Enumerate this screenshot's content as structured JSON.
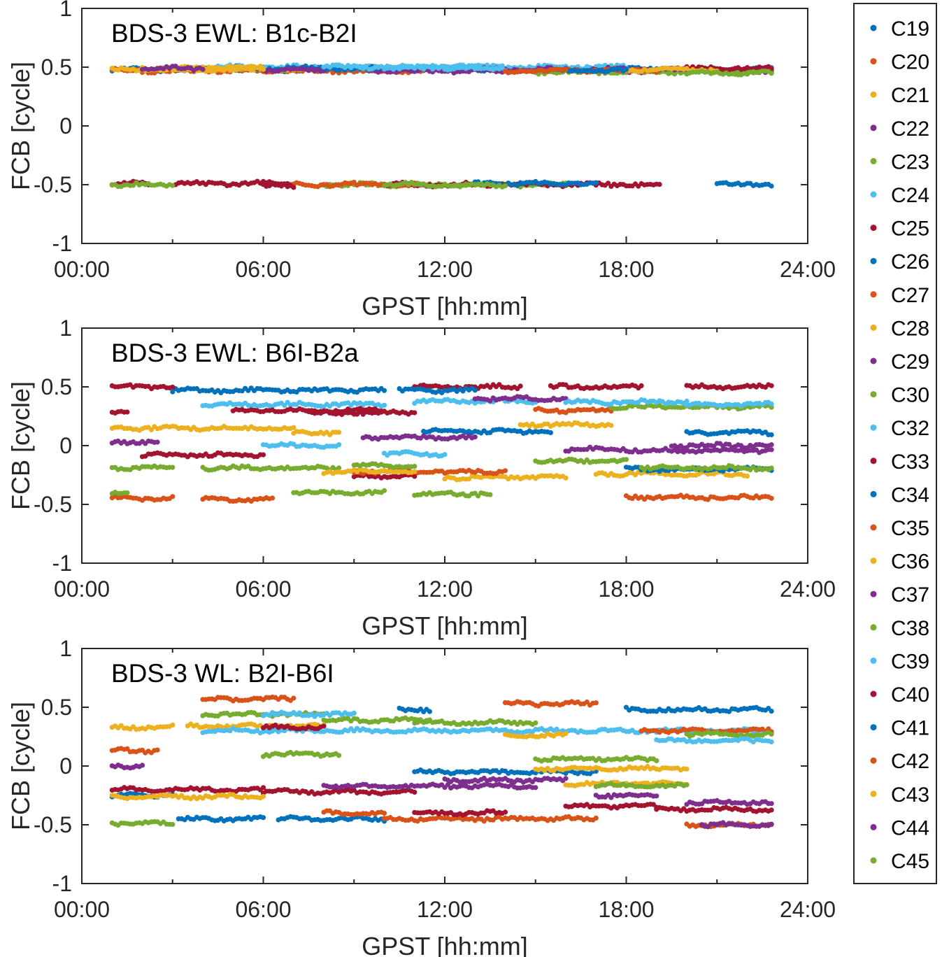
{
  "chart_data": [
    {
      "type": "scatter",
      "title": "BDS-3 EWL: B1c-B2I",
      "xlabel": "GPST [hh:mm]",
      "ylabel": "FCB [cycle]",
      "xlim": [
        0,
        24
      ],
      "ylim": [
        -1,
        1
      ],
      "xticks": [
        "00:00",
        "06:00",
        "12:00",
        "18:00",
        "24:00"
      ],
      "yticks": [
        "-1",
        "-0.5",
        "0",
        "0.5",
        "1"
      ],
      "series": [
        {
          "name": "C19",
          "segments": [
            [
              1,
              22.8,
              0.48
            ],
            [
              21,
              22.8,
              -0.5
            ]
          ]
        },
        {
          "name": "C20",
          "segments": [
            [
              1,
              12,
              0.47
            ]
          ]
        },
        {
          "name": "C21",
          "segments": [
            [
              1,
              7.5,
              0.48
            ]
          ]
        },
        {
          "name": "C22",
          "segments": [
            [
              9.5,
              22.8,
              0.47
            ]
          ]
        },
        {
          "name": "C23",
          "segments": [
            [
              8,
              16,
              -0.5
            ],
            [
              15,
              22.8,
              0.46
            ]
          ]
        },
        {
          "name": "C24",
          "segments": [
            [
              4,
              18,
              0.5
            ]
          ]
        },
        {
          "name": "C25",
          "segments": [
            [
              1,
              2.2,
              -0.49
            ],
            [
              3.1,
              6.9,
              -0.49
            ],
            [
              10,
              19.1,
              -0.5
            ]
          ]
        },
        {
          "name": "C26",
          "segments": [
            [
              5,
              10,
              0.49
            ]
          ]
        },
        {
          "name": "C27",
          "segments": [
            [
              7,
              11,
              -0.5
            ]
          ]
        },
        {
          "name": "C28",
          "segments": [
            [
              2,
              6,
              0.49
            ]
          ]
        },
        {
          "name": "C29",
          "segments": [
            [
              12,
              20,
              0.48
            ]
          ]
        },
        {
          "name": "C30",
          "segments": [
            [
              1,
              3,
              -0.5
            ]
          ]
        },
        {
          "name": "C32",
          "segments": [
            [
              12,
              14,
              0.49
            ]
          ]
        },
        {
          "name": "C33",
          "segments": [
            [
              20,
              22.8,
              0.49
            ]
          ]
        },
        {
          "name": "C34",
          "segments": [
            [
              13,
              17,
              -0.49
            ]
          ]
        },
        {
          "name": "C35",
          "segments": [
            [
              16,
              19,
              0.47
            ]
          ]
        },
        {
          "name": "C36",
          "segments": [
            [
              18,
              21,
              0.48
            ]
          ]
        },
        {
          "name": "C37",
          "segments": [
            [
              6,
              8,
              0.48
            ]
          ]
        },
        {
          "name": "C38",
          "segments": [
            [
              10,
              14,
              -0.5
            ]
          ]
        },
        {
          "name": "C39",
          "segments": [
            [
              8,
              13,
              0.5
            ]
          ]
        },
        {
          "name": "C40",
          "segments": [
            [
              6,
              7,
              -0.51
            ]
          ]
        },
        {
          "name": "C41",
          "segments": [
            [
              16,
              18,
              0.47
            ]
          ]
        },
        {
          "name": "C42",
          "segments": [
            [
              14,
              16,
              0.47
            ]
          ]
        },
        {
          "name": "C43",
          "segments": [
            [
              4,
              6,
              0.49
            ]
          ]
        },
        {
          "name": "C44",
          "segments": [
            [
              2,
              4,
              0.49
            ]
          ]
        },
        {
          "name": "C45",
          "segments": [
            [
              20,
              22.8,
              0.45
            ]
          ]
        }
      ]
    },
    {
      "type": "scatter",
      "title": "BDS-3 EWL: B6I-B2a",
      "xlabel": "GPST [hh:mm]",
      "ylabel": "FCB [cycle]",
      "xlim": [
        0,
        24
      ],
      "ylim": [
        -1,
        1
      ],
      "xticks": [
        "00:00",
        "06:00",
        "12:00",
        "18:00",
        "24:00"
      ],
      "yticks": [
        "-1",
        "-0.5",
        "0",
        "0.5",
        "1"
      ],
      "series": [
        {
          "name": "C19",
          "segments": [
            [
              3,
              10,
              0.47
            ],
            [
              11.3,
              15.5,
              0.12
            ]
          ]
        },
        {
          "name": "C20",
          "segments": [
            [
              1,
              3,
              -0.45
            ],
            [
              4,
              6.3,
              -0.46
            ]
          ]
        },
        {
          "name": "C21",
          "segments": [
            [
              1,
              7,
              0.15
            ],
            [
              7,
              8.5,
              0.11
            ]
          ]
        },
        {
          "name": "C22",
          "segments": [
            [
              1,
              2.5,
              0.03
            ],
            [
              9.3,
              13,
              0.07
            ]
          ]
        },
        {
          "name": "C23",
          "segments": [
            [
              1,
              3,
              -0.19
            ],
            [
              4,
              8.5,
              -0.19
            ]
          ]
        },
        {
          "name": "C24",
          "segments": [
            [
              4,
              10,
              0.35
            ],
            [
              11,
              15,
              0.38
            ]
          ]
        },
        {
          "name": "C25",
          "segments": [
            [
              1,
              1.5,
              0.28
            ],
            [
              2,
              6,
              -0.08
            ],
            [
              11,
              14.5,
              0.5
            ]
          ]
        },
        {
          "name": "C26",
          "segments": [
            [
              10.5,
              13,
              0.47
            ]
          ]
        },
        {
          "name": "C27",
          "segments": [
            [
              15,
              17.5,
              0.3
            ]
          ]
        },
        {
          "name": "C28",
          "segments": [
            [
              14.5,
              17.5,
              0.18
            ],
            [
              17,
              22,
              -0.24
            ]
          ]
        },
        {
          "name": "C29",
          "segments": [
            [
              13,
              16,
              0.4
            ],
            [
              19.5,
              22.8,
              0.0
            ]
          ]
        },
        {
          "name": "C30",
          "segments": [
            [
              15,
              18,
              -0.13
            ],
            [
              17.5,
              22.8,
              0.33
            ]
          ]
        },
        {
          "name": "C32",
          "segments": [
            [
              6,
              8.5,
              0.0
            ],
            [
              10,
              12,
              -0.07
            ]
          ]
        },
        {
          "name": "C33",
          "segments": [
            [
              1,
              3,
              0.5
            ],
            [
              7.5,
              11,
              0.28
            ],
            [
              15.5,
              18.5,
              0.5
            ],
            [
              20,
              22.8,
              0.5
            ]
          ]
        },
        {
          "name": "C34",
          "segments": [
            [
              18,
              22.8,
              -0.2
            ]
          ]
        },
        {
          "name": "C35",
          "segments": [
            [
              18,
              22.8,
              -0.44
            ]
          ]
        },
        {
          "name": "C36",
          "segments": [
            [
              12,
              16,
              -0.27
            ]
          ]
        },
        {
          "name": "C37",
          "segments": [
            [
              18,
              22.8,
              -0.04
            ]
          ]
        },
        {
          "name": "C38",
          "segments": [
            [
              7,
              10,
              -0.4
            ],
            [
              11,
              13.5,
              -0.41
            ],
            [
              18.5,
              22.8,
              -0.19
            ]
          ]
        },
        {
          "name": "C39",
          "segments": [
            [
              16,
              20,
              0.37
            ],
            [
              20,
              22.8,
              0.35
            ]
          ]
        },
        {
          "name": "C40",
          "segments": [
            [
              5,
              10,
              0.3
            ],
            [
              9,
              11,
              -0.26
            ]
          ]
        },
        {
          "name": "C41",
          "segments": [
            [
              20,
              22.8,
              0.11
            ]
          ]
        },
        {
          "name": "C42",
          "segments": [
            [
              9,
              14,
              -0.22
            ]
          ]
        },
        {
          "name": "C43",
          "segments": [
            [
              8,
              11,
              -0.22
            ]
          ]
        },
        {
          "name": "C44",
          "segments": [
            [
              16,
              18,
              -0.03
            ]
          ]
        },
        {
          "name": "C45",
          "segments": [
            [
              9,
              11,
              -0.17
            ],
            [
              1,
              1.5,
              -0.4
            ]
          ]
        }
      ]
    },
    {
      "type": "scatter",
      "title": "BDS-3 WL: B2I-B6I",
      "xlabel": "GPST [hh:mm]",
      "ylabel": "FCB [cycle]",
      "xlim": [
        0,
        24
      ],
      "ylim": [
        -1,
        1
      ],
      "xticks": [
        "00:00",
        "06:00",
        "12:00",
        "18:00",
        "24:00"
      ],
      "yticks": [
        "-1",
        "-0.5",
        "0",
        "0.5",
        "1"
      ],
      "series": [
        {
          "name": "C19",
          "segments": [
            [
              1,
              3,
              -0.25
            ],
            [
              3.2,
              6,
              -0.45
            ],
            [
              6.5,
              10,
              -0.45
            ]
          ]
        },
        {
          "name": "C20",
          "segments": [
            [
              1,
              2.5,
              0.13
            ],
            [
              4,
              7,
              0.57
            ],
            [
              14,
              17,
              0.53
            ]
          ]
        },
        {
          "name": "C21",
          "segments": [
            [
              1,
              3,
              0.33
            ],
            [
              3.5,
              8,
              0.34
            ]
          ]
        },
        {
          "name": "C22",
          "segments": [
            [
              1,
              2,
              0.0
            ],
            [
              12,
              16,
              -0.12
            ]
          ]
        },
        {
          "name": "C23",
          "segments": [
            [
              1,
              3,
              -0.49
            ],
            [
              4,
              8,
              0.44
            ]
          ]
        },
        {
          "name": "C24",
          "segments": [
            [
              4,
              22.8,
              0.3
            ]
          ]
        },
        {
          "name": "C25",
          "segments": [
            [
              1,
              6,
              -0.2
            ],
            [
              6,
              11,
              -0.22
            ]
          ]
        },
        {
          "name": "C26",
          "segments": [
            [
              11,
              17,
              -0.05
            ]
          ]
        },
        {
          "name": "C27",
          "segments": [
            [
              8,
              10,
              -0.4
            ],
            [
              10,
              17,
              -0.45
            ]
          ]
        },
        {
          "name": "C28",
          "segments": [
            [
              1,
              6,
              -0.26
            ],
            [
              14,
              16,
              0.26
            ]
          ]
        },
        {
          "name": "C29",
          "segments": [
            [
              8,
              15,
              -0.17
            ],
            [
              17,
              19,
              -0.25
            ]
          ]
        },
        {
          "name": "C30",
          "segments": [
            [
              6,
              8.5,
              0.1
            ],
            [
              15,
              19,
              0.06
            ]
          ]
        },
        {
          "name": "C32",
          "segments": [
            [
              6,
              9,
              0.44
            ]
          ]
        },
        {
          "name": "C33",
          "segments": [
            [
              6,
              8,
              0.33
            ],
            [
              11,
              14,
              -0.4
            ],
            [
              16,
              19,
              -0.34
            ]
          ]
        },
        {
          "name": "C34",
          "segments": [
            [
              18,
              22.8,
              0.48
            ]
          ]
        },
        {
          "name": "C35",
          "segments": [
            [
              18.5,
              22.8,
              0.3
            ]
          ]
        },
        {
          "name": "C36",
          "segments": [
            [
              15,
              20,
              -0.02
            ]
          ]
        },
        {
          "name": "C37",
          "segments": [
            [
              20,
              22.8,
              -0.31
            ]
          ]
        },
        {
          "name": "C38",
          "segments": [
            [
              20,
              22.8,
              0.27
            ]
          ]
        },
        {
          "name": "C39",
          "segments": [
            [
              19,
              22.8,
              0.22
            ]
          ]
        },
        {
          "name": "C40",
          "segments": [
            [
              19,
              22.8,
              -0.37
            ]
          ]
        },
        {
          "name": "C41",
          "segments": [
            [
              10.5,
              11.5,
              0.48
            ]
          ]
        },
        {
          "name": "C42",
          "segments": [
            [
              20,
              22.8,
              -0.5
            ]
          ]
        },
        {
          "name": "C43",
          "segments": [
            [
              16,
              20,
              -0.15
            ]
          ]
        },
        {
          "name": "C44",
          "segments": [
            [
              20.5,
              22.8,
              -0.5
            ]
          ]
        },
        {
          "name": "C45",
          "segments": [
            [
              8,
              11.5,
              0.39
            ],
            [
              11,
              15,
              0.37
            ],
            [
              17,
              20,
              -0.17
            ]
          ]
        }
      ]
    }
  ],
  "legend": {
    "position": "right",
    "entries": [
      "C19",
      "C20",
      "C21",
      "C22",
      "C23",
      "C24",
      "C25",
      "C26",
      "C27",
      "C28",
      "C29",
      "C30",
      "C32",
      "C33",
      "C34",
      "C35",
      "C36",
      "C37",
      "C38",
      "C39",
      "C40",
      "C41",
      "C42",
      "C43",
      "C44",
      "C45"
    ],
    "colors": [
      "#0072BD",
      "#D95319",
      "#EDB120",
      "#7E2F8E",
      "#77AC30",
      "#4DBEEE",
      "#A2142F"
    ]
  }
}
